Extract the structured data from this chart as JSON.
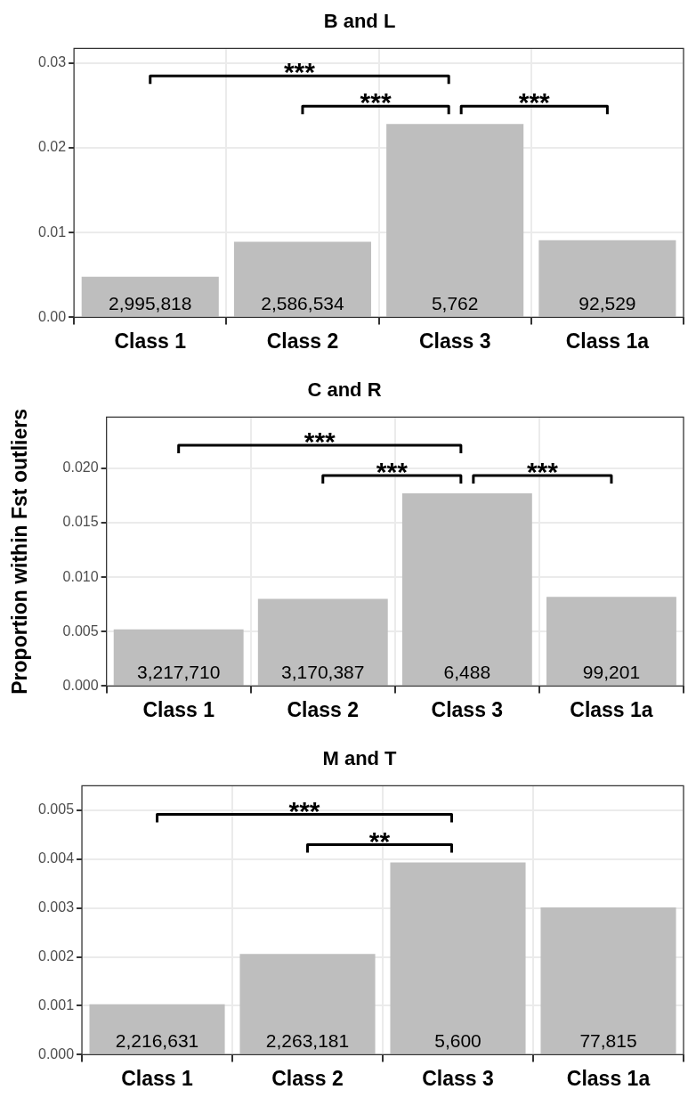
{
  "chart_data": [
    {
      "type": "bar",
      "title": "B and L",
      "categories": [
        "Class 1",
        "Class 2",
        "Class 3",
        "Class 1a"
      ],
      "values": [
        0.0048,
        0.0089,
        0.0228,
        0.0091
      ],
      "color": "#bebebe",
      "ylim": [
        0,
        0.0317
      ],
      "yticks": [
        {
          "value": 0,
          "label": "0.00"
        },
        {
          "value": 0.01,
          "label": "0.01"
        },
        {
          "value": 0.02,
          "label": "0.02"
        },
        {
          "value": 0.03,
          "label": "0.03"
        }
      ],
      "grid": true,
      "annotations": [
        "2,995,818",
        "2,586,534",
        "5,762",
        "92,529",
        "***",
        "***",
        "***"
      ]
    },
    {
      "type": "bar",
      "title": "C and R",
      "ylabel": "Proportion within Fst outliers",
      "categories": [
        "Class 1",
        "Class 2",
        "Class 3",
        "Class 1a"
      ],
      "values": [
        0.0052,
        0.008,
        0.0177,
        0.0082
      ],
      "color": "#bebebe",
      "ylim": [
        0,
        0.0247
      ],
      "yticks": [
        {
          "value": 0,
          "label": "0.000"
        },
        {
          "value": 0.005,
          "label": "0.005"
        },
        {
          "value": 0.01,
          "label": "0.010"
        },
        {
          "value": 0.015,
          "label": "0.015"
        },
        {
          "value": 0.02,
          "label": "0.020"
        }
      ],
      "grid": true,
      "annotations": [
        "3,217,710",
        "3,170,387",
        "6,488",
        "99,201",
        "***",
        "***",
        "***"
      ]
    },
    {
      "type": "bar",
      "title": "M and T",
      "categories": [
        "Class 1",
        "Class 2",
        "Class 3",
        "Class 1a"
      ],
      "values": [
        0.00103,
        0.00206,
        0.00393,
        0.00301
      ],
      "color": "#bebebe",
      "ylim": [
        0,
        0.0055
      ],
      "yticks": [
        {
          "value": 0,
          "label": "0.000"
        },
        {
          "value": 0.001,
          "label": "0.001"
        },
        {
          "value": 0.002,
          "label": "0.002"
        },
        {
          "value": 0.003,
          "label": "0.003"
        },
        {
          "value": 0.004,
          "label": "0.004"
        },
        {
          "value": 0.005,
          "label": "0.005"
        }
      ],
      "grid": true,
      "annotations": [
        "2,216,631",
        "2,263,181",
        "5,600",
        "77,815",
        "***",
        "**"
      ]
    }
  ]
}
